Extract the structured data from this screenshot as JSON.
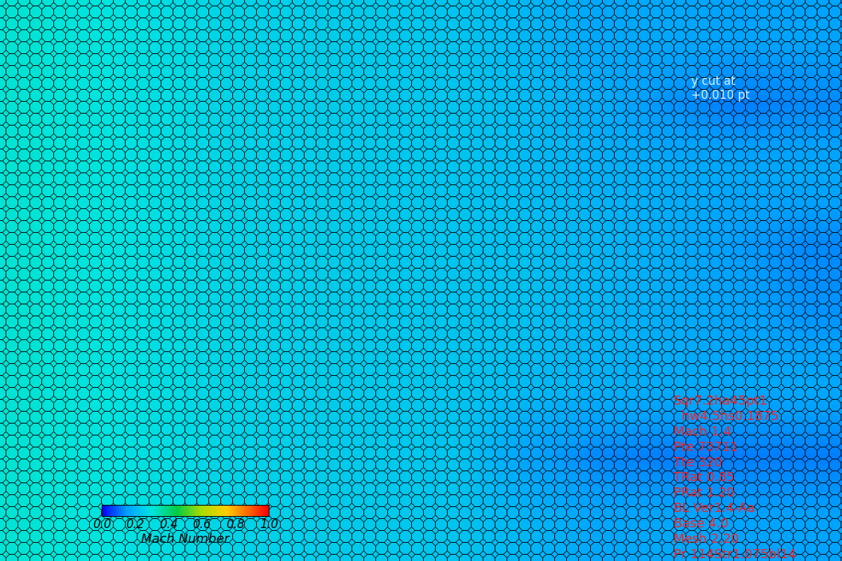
{
  "chart_data": {
    "type": "heatmap",
    "cells": [
      [
        0.31,
        0.3,
        0.28,
        0.26,
        0.25,
        0.24,
        0.23,
        0.2,
        0.17,
        0.17,
        0.16,
        0.16
      ],
      [
        0.31,
        0.3,
        0.28,
        0.26,
        0.25,
        0.24,
        0.23,
        0.21,
        0.18,
        0.14,
        0.12,
        0.13
      ],
      [
        0.31,
        0.3,
        0.28,
        0.26,
        0.25,
        0.24,
        0.23,
        0.21,
        0.19,
        0.18,
        0.17,
        0.17
      ],
      [
        0.31,
        0.3,
        0.28,
        0.26,
        0.25,
        0.24,
        0.23,
        0.22,
        0.2,
        0.18,
        0.15,
        0.13
      ],
      [
        0.31,
        0.3,
        0.28,
        0.26,
        0.25,
        0.24,
        0.23,
        0.22,
        0.2,
        0.18,
        0.16,
        0.14
      ],
      [
        0.31,
        0.3,
        0.28,
        0.26,
        0.25,
        0.24,
        0.23,
        0.21,
        0.19,
        0.18,
        0.17,
        0.17
      ],
      [
        0.31,
        0.3,
        0.28,
        0.26,
        0.25,
        0.24,
        0.23,
        0.16,
        0.13,
        0.12,
        0.12,
        0.12
      ],
      [
        0.31,
        0.3,
        0.28,
        0.26,
        0.25,
        0.24,
        0.23,
        0.2,
        0.17,
        0.17,
        0.16,
        0.16
      ]
    ],
    "colorbar_range": [
      0.0,
      1.0
    ],
    "colorbar_ticks": [
      0.0,
      0.2,
      0.4,
      0.6,
      0.8,
      1.0
    ],
    "colorbar_label": "Mach Number",
    "cut_label": [
      "y cut at",
      "+0.010 pt"
    ],
    "annotations": [
      "Sqr7.2ha45pt1",
      "  hw4.5hs0.1875",
      "Mach 1.4",
      "Pte 73711",
      "Tte 320",
      "TRat 0.85",
      "PRat 1.20",
      "BL Ver1.4-Aa",
      "Base 4.0",
      "Mesh 2.20",
      "Pr 114Str1.075bl14"
    ],
    "tick_labels": false
  }
}
